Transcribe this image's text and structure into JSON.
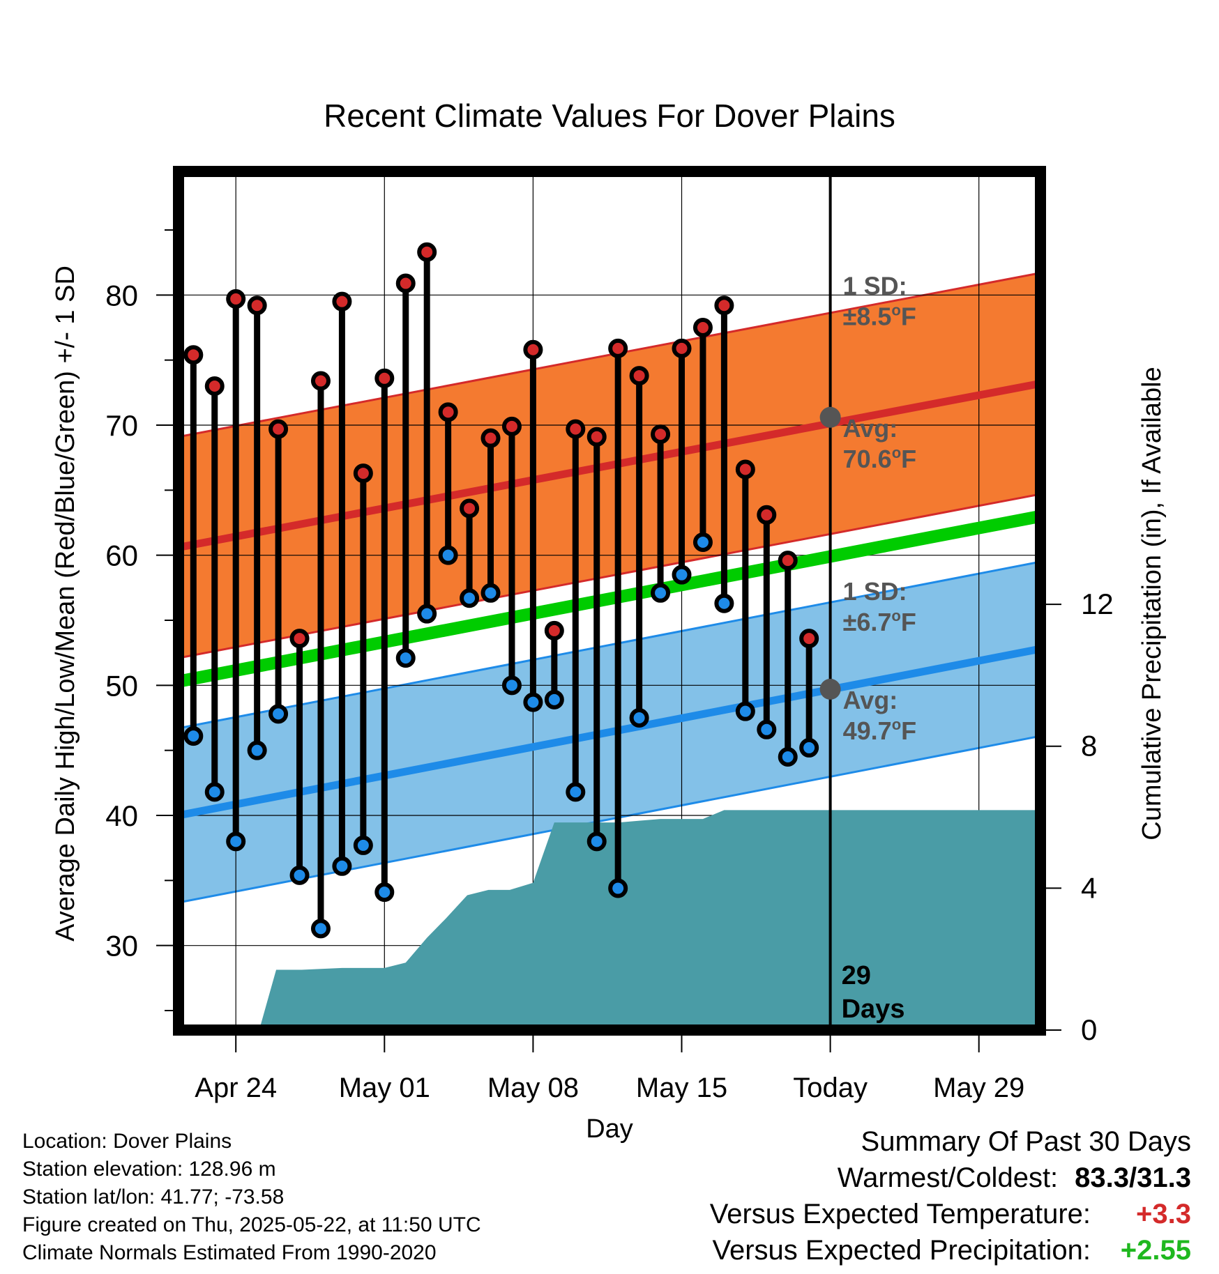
{
  "chart_data": {
    "type": "line",
    "title": "Recent Climate Values For Dover Plains",
    "xlabel": "Day",
    "ylabel": "Average Daily High/Low/Mean (Red/Blue/Green) +/- 1 SD",
    "y2label": "Cumulative Precipitation (in), If Available",
    "x_tick_labels": [
      "Apr 24",
      "May 01",
      "May 08",
      "May 15",
      "Today",
      "May 29"
    ],
    "x_ticks_day": [
      0,
      7,
      14,
      21,
      28,
      35
    ],
    "xlim_day": [
      -2.7,
      37.9
    ],
    "ylim": [
      23.5,
      89.5
    ],
    "y_ticks": [
      30,
      40,
      50,
      60,
      70,
      80
    ],
    "y2lim": [
      0,
      24.2
    ],
    "y2_ticks": [
      0,
      4,
      8,
      12
    ],
    "grid": true,
    "today_day": 28,
    "days": [
      -2,
      -1,
      0,
      1,
      2,
      3,
      4,
      5,
      6,
      7,
      8,
      9,
      10,
      11,
      12,
      13,
      14,
      15,
      16,
      17,
      18,
      19,
      20,
      21,
      22,
      23,
      24,
      25,
      26,
      27
    ],
    "series": [
      {
        "name": "High",
        "color": "#d42a2a",
        "values": [
          75.4,
          73.0,
          79.7,
          79.2,
          69.7,
          53.6,
          73.4,
          79.5,
          66.3,
          73.6,
          80.9,
          83.3,
          71.0,
          63.6,
          69.0,
          69.9,
          75.8,
          54.2,
          69.7,
          69.1,
          75.9,
          73.8,
          69.3,
          75.9,
          77.5,
          79.2,
          66.6,
          63.1,
          59.6,
          53.6
        ]
      },
      {
        "name": "Low",
        "color": "#1e8be8",
        "values": [
          46.1,
          41.8,
          38.0,
          45.0,
          47.8,
          35.4,
          31.3,
          36.1,
          37.7,
          34.1,
          52.1,
          55.5,
          60.0,
          56.7,
          57.1,
          50.0,
          48.7,
          48.9,
          41.8,
          38.0,
          34.4,
          47.5,
          57.1,
          58.5,
          61.0,
          56.3,
          48.0,
          46.6,
          44.5,
          45.2
        ]
      }
    ],
    "normal_high": {
      "start": 60.6,
      "end": 73.2,
      "sd": 8.5,
      "color": "#d42a2a",
      "band_color": "#f47a30"
    },
    "normal_low": {
      "start": 40.0,
      "end": 52.8,
      "sd": 6.7,
      "color": "#1e8be8",
      "band_color": "#83c1e8"
    },
    "normal_mean": {
      "start": 50.3,
      "end": 63.0,
      "color": "#00cc00"
    },
    "precip_cumulative": {
      "color": "#4a9ca6",
      "days": [
        1.1,
        1.9,
        3.1,
        5.0,
        5.9,
        7.0,
        8.0,
        9.0,
        9.9,
        10.9,
        11.9,
        12.9,
        14.0,
        15.0,
        16.0,
        17.0,
        18.0,
        19.0,
        20.0,
        21.0,
        22.0,
        23.0,
        37.9
      ],
      "values": [
        0,
        1.7,
        1.7,
        1.75,
        1.75,
        1.75,
        1.9,
        2.6,
        3.15,
        3.8,
        3.95,
        3.95,
        4.15,
        5.85,
        5.85,
        5.85,
        5.85,
        5.9,
        5.95,
        5.95,
        5.95,
        6.2,
        6.2
      ]
    },
    "annotations": [
      {
        "line1": "1 SD:",
        "line2": "±8.5",
        "unit": "oF"
      },
      {
        "line1": "Avg:",
        "line2": "70.6",
        "unit": "oF"
      },
      {
        "line1": "1 SD:",
        "line2": "±6.7",
        "unit": "oF"
      },
      {
        "line1": "Avg:",
        "line2": "49.7",
        "unit": "oF"
      }
    ],
    "today_avg_high": 70.6,
    "today_avg_low": 49.7,
    "days_label": [
      "29",
      "Days"
    ],
    "annotation_color": "#555555"
  },
  "info": {
    "location": "Location: Dover Plains",
    "elevation": "Station elevation: 128.96 m",
    "latlon": "Station lat/lon: 41.77; -73.58",
    "created": "Figure created on Thu, 2025-05-22, at 11:50 UTC",
    "normals": "Climate Normals Estimated From 1990-2020"
  },
  "summary": {
    "heading": "Summary Of Past 30 Days",
    "warm_cold_label": "Warmest/Coldest:",
    "warm_cold_value": "83.3/31.3",
    "temp_label": "Versus Expected Temperature:",
    "temp_value": "+3.3",
    "temp_color": "#d42a2a",
    "precip_label": "Versus Expected Precipitation:",
    "precip_value": "+2.55",
    "precip_color": "#1fb81f"
  }
}
